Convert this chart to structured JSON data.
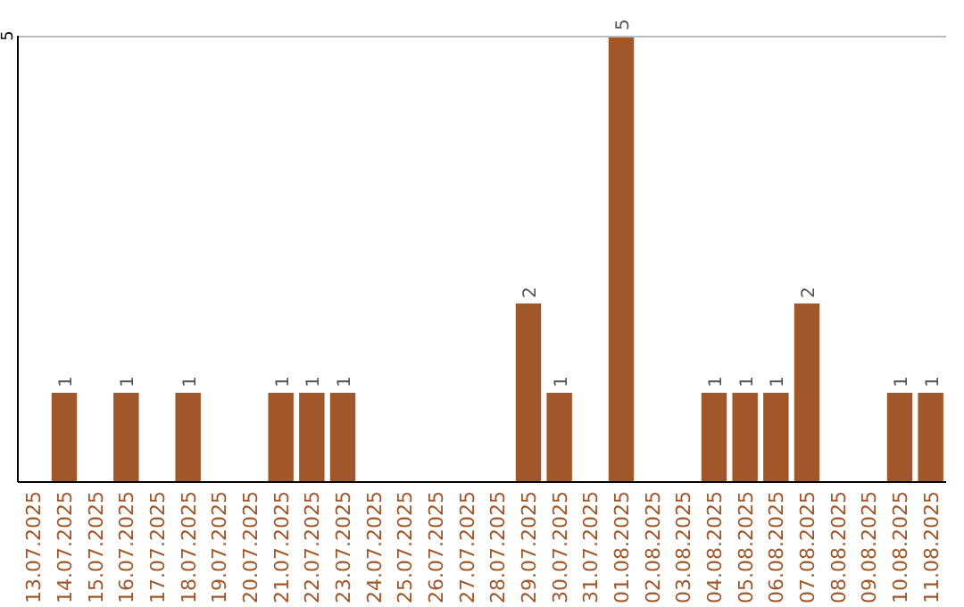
{
  "chart_data": {
    "type": "bar",
    "categories": [
      "13.07.2025",
      "14.07.2025",
      "15.07.2025",
      "16.07.2025",
      "17.07.2025",
      "18.07.2025",
      "19.07.2025",
      "20.07.2025",
      "21.07.2025",
      "22.07.2025",
      "23.07.2025",
      "24.07.2025",
      "25.07.2025",
      "26.07.2025",
      "27.07.2025",
      "28.07.2025",
      "29.07.2025",
      "30.07.2025",
      "31.07.2025",
      "01.08.2025",
      "02.08.2025",
      "03.08.2025",
      "04.08.2025",
      "05.08.2025",
      "06.08.2025",
      "07.08.2025",
      "08.08.2025",
      "09.08.2025",
      "10.08.2025",
      "11.08.2025"
    ],
    "values": [
      0,
      1,
      0,
      1,
      0,
      1,
      0,
      0,
      1,
      1,
      1,
      0,
      0,
      0,
      0,
      0,
      2,
      1,
      0,
      5,
      0,
      0,
      1,
      1,
      1,
      2,
      0,
      0,
      1,
      1
    ],
    "value_labels": [
      null,
      "1",
      null,
      "1",
      null,
      "1",
      null,
      null,
      "1",
      "1",
      "1",
      null,
      null,
      null,
      null,
      null,
      "2",
      "1",
      null,
      "5",
      null,
      null,
      "1",
      "1",
      "1",
      "2",
      null,
      null,
      "1",
      "1"
    ],
    "color": "#a0582a",
    "ylim": [
      0,
      5
    ],
    "yticks": [
      5
    ]
  }
}
